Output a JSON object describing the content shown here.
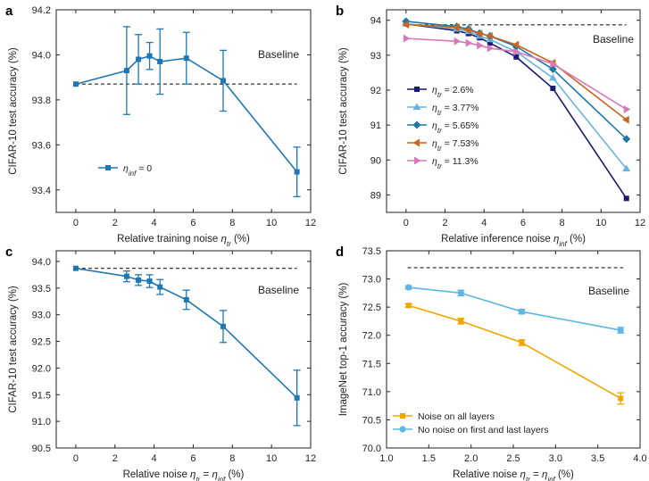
{
  "chart_data": [
    {
      "panel": "a",
      "type": "line",
      "ylabel": "CIFAR-10 test accuracy (%)",
      "xlabel": "Relative training noise ηtr (%)",
      "xlim": [
        -1,
        12
      ],
      "ylim": [
        93.3,
        94.2
      ],
      "xticks": [
        "0",
        "2",
        "4",
        "6",
        "8",
        "10",
        "12"
      ],
      "yticks": [
        "93.4",
        "93.6",
        "93.8",
        "94.0",
        "94.2"
      ],
      "baseline": {
        "label": "Baseline",
        "value": 93.87,
        "x_range": [
          0,
          11.3
        ]
      },
      "series": [
        {
          "name": "ηinf = 0",
          "color": "#1f77b4",
          "marker": "square",
          "x": [
            0,
            2.6,
            3.2,
            3.77,
            4.3,
            5.65,
            7.53,
            11.3
          ],
          "y": [
            93.87,
            93.93,
            93.98,
            93.995,
            93.97,
            93.985,
            93.885,
            93.48
          ],
          "err": [
            0,
            0.195,
            0.11,
            0.06,
            0.145,
            0.115,
            0.135,
            0.11
          ]
        }
      ]
    },
    {
      "panel": "b",
      "type": "line",
      "ylabel": "CIFAR-10 test accuracy (%)",
      "xlabel": "Relative inference noise ηinf (%)",
      "xlim": [
        -1,
        12
      ],
      "ylim": [
        88.5,
        94.3
      ],
      "xticks": [
        "0",
        "2",
        "4",
        "6",
        "8",
        "10",
        "12"
      ],
      "yticks": [
        "89",
        "90",
        "91",
        "92",
        "93",
        "94"
      ],
      "baseline": {
        "label": "Baseline",
        "value": 93.87,
        "x_range": [
          0,
          11.3
        ]
      },
      "series": [
        {
          "name": "ηtr = 2.6%",
          "color": "#1a1a6e",
          "marker": "square",
          "x": [
            0,
            2.6,
            3.2,
            3.77,
            4.3,
            5.65,
            7.53,
            11.3
          ],
          "y": [
            93.9,
            93.7,
            93.62,
            93.5,
            93.35,
            92.95,
            92.05,
            88.9
          ]
        },
        {
          "name": "ηtr = 3.77%",
          "color": "#6ab3e0",
          "marker": "triangle",
          "x": [
            0,
            2.6,
            3.2,
            3.77,
            4.3,
            5.65,
            7.53,
            11.3
          ],
          "y": [
            93.9,
            93.75,
            93.68,
            93.55,
            93.45,
            93.1,
            92.35,
            89.75
          ]
        },
        {
          "name": "ηtr = 5.65%",
          "color": "#1e78a8",
          "marker": "diamond",
          "x": [
            0,
            2.6,
            3.2,
            3.77,
            4.3,
            5.65,
            7.53,
            11.3
          ],
          "y": [
            93.97,
            93.82,
            93.75,
            93.63,
            93.55,
            93.25,
            92.6,
            90.6
          ]
        },
        {
          "name": "ηtr = 7.53%",
          "color": "#c8651e",
          "marker": "triangle-left",
          "x": [
            0,
            2.6,
            3.2,
            3.77,
            4.3,
            5.65,
            7.53,
            11.3
          ],
          "y": [
            93.88,
            93.8,
            93.72,
            93.62,
            93.55,
            93.3,
            92.78,
            91.15
          ]
        },
        {
          "name": "ηtr = 11.3%",
          "color": "#d67ab8",
          "marker": "triangle-right",
          "x": [
            0,
            2.6,
            3.2,
            3.77,
            4.3,
            5.65,
            7.53,
            11.3
          ],
          "y": [
            93.48,
            93.4,
            93.35,
            93.28,
            93.2,
            93.1,
            92.75,
            91.45
          ]
        }
      ]
    },
    {
      "panel": "c",
      "type": "line",
      "ylabel": "CIFAR-10 test accuracy (%)",
      "xlabel": "Relative noise ηtr = ηinf (%)",
      "xlim": [
        -1,
        12
      ],
      "ylim": [
        90.5,
        94.2
      ],
      "xticks": [
        "0",
        "2",
        "4",
        "6",
        "8",
        "10",
        "12"
      ],
      "yticks": [
        "90.5",
        "91.0",
        "91.5",
        "92.0",
        "92.5",
        "93.0",
        "93.5",
        "94.0"
      ],
      "baseline": {
        "label": "Baseline",
        "value": 93.87,
        "x_range": [
          0,
          11.3
        ]
      },
      "series": [
        {
          "name": "",
          "color": "#1f77b4",
          "marker": "square",
          "x": [
            0,
            2.6,
            3.2,
            3.77,
            4.3,
            5.65,
            7.53,
            11.3
          ],
          "y": [
            93.87,
            93.72,
            93.65,
            93.63,
            93.52,
            93.28,
            92.78,
            91.44
          ],
          "err": [
            0,
            0.1,
            0.1,
            0.12,
            0.14,
            0.18,
            0.3,
            0.52
          ]
        }
      ]
    },
    {
      "panel": "d",
      "type": "line",
      "ylabel": "ImageNet top-1 accuracy (%)",
      "xlabel": "Relative noise ηtr = ηinf (%)",
      "xlim": [
        1.0,
        4.0
      ],
      "ylim": [
        70.0,
        73.5
      ],
      "xticks": [
        "1.0",
        "1.5",
        "2.0",
        "2.5",
        "3.0",
        "3.5",
        "4.0"
      ],
      "yticks": [
        "70.0",
        "70.5",
        "71.0",
        "71.5",
        "72.0",
        "72.5",
        "73.0",
        "73.5"
      ],
      "baseline": {
        "label": "Baseline",
        "value": 73.2,
        "x_range": [
          1.25,
          3.8
        ]
      },
      "series": [
        {
          "name": "Noise on all layers",
          "color": "#f0a500",
          "marker": "square",
          "x": [
            1.26,
            1.88,
            2.6,
            3.77
          ],
          "y": [
            72.53,
            72.25,
            71.87,
            70.88
          ],
          "err": [
            0.03,
            0.05,
            0.05,
            0.1
          ]
        },
        {
          "name": "No noise on first and last layers",
          "color": "#5db7e4",
          "marker": "circle",
          "x": [
            1.26,
            1.88,
            2.6,
            3.77
          ],
          "y": [
            72.85,
            72.75,
            72.42,
            72.09
          ],
          "err": [
            0.03,
            0.05,
            0.04,
            0.05
          ]
        }
      ]
    }
  ]
}
